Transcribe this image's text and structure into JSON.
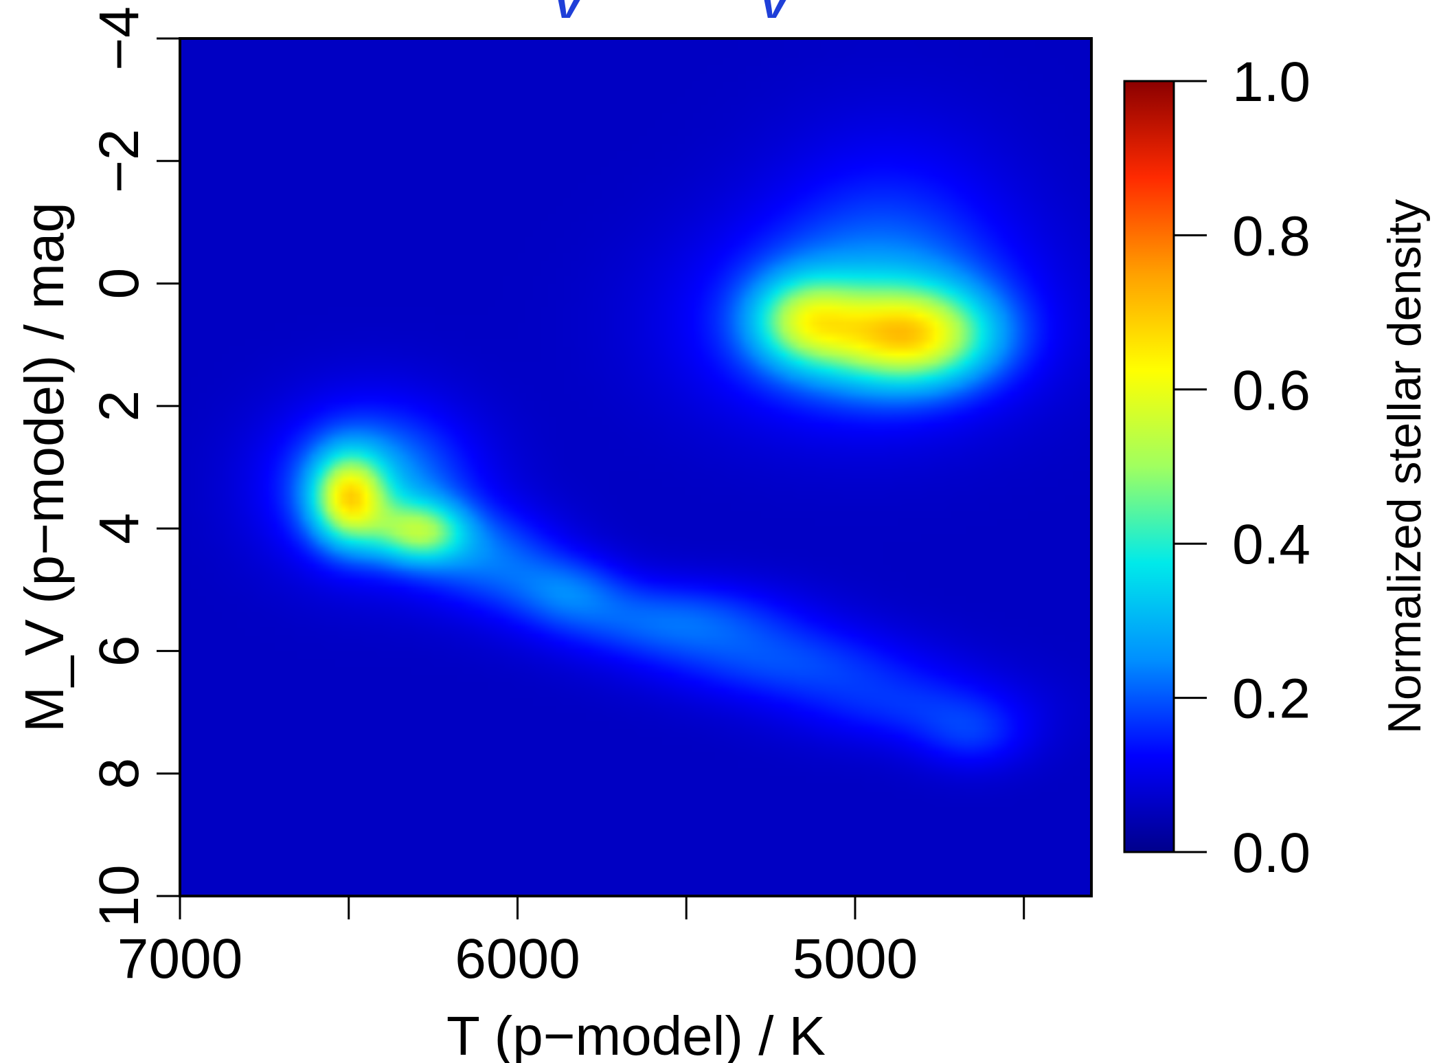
{
  "chart_data": {
    "type": "heatmap",
    "title": "",
    "xlabel": "T (p−model) / K",
    "ylabel": "M_V (p−model) / mag",
    "xlim": [
      7000,
      4300
    ],
    "ylim": [
      10,
      -4
    ],
    "x_ticks": [
      7000,
      6500,
      6000,
      5500,
      5000,
      4500
    ],
    "x_tick_labels": [
      "7000",
      "",
      "6000",
      "",
      "5000",
      ""
    ],
    "y_ticks": [
      -4,
      -2,
      0,
      2,
      4,
      6,
      8,
      10
    ],
    "y_tick_labels": [
      "−4",
      "−2",
      "0",
      "2",
      "4",
      "6",
      "8",
      "10"
    ],
    "colorbar": {
      "label": "Normalized stellar density",
      "range": [
        0.0,
        1.0
      ],
      "ticks": [
        0.0,
        0.2,
        0.4,
        0.6,
        0.8,
        1.0
      ],
      "tick_labels": [
        "0.0",
        "0.2",
        "0.4",
        "0.6",
        "0.8",
        "1.0"
      ],
      "colormap": [
        "#00008b",
        "#0000ff",
        "#0090ff",
        "#00eaea",
        "#a0ff60",
        "#ffff00",
        "#ffa000",
        "#ff2a00",
        "#8b0000"
      ]
    },
    "background_value": 0.06,
    "density_components": [
      {
        "name": "",
        "t": 6500,
        "mv": 3.5,
        "peak": 0.42,
        "sigma_t": 75,
        "sigma_mv": 0.5
      },
      {
        "name": "",
        "t": 6290,
        "mv": 4.05,
        "peak": 0.32,
        "sigma_t": 95,
        "sigma_mv": 0.35
      },
      {
        "name": "",
        "t": 6430,
        "mv": 3.3,
        "peak": 0.22,
        "sigma_t": 200,
        "sigma_mv": 0.9
      },
      {
        "name": "",
        "t": 6080,
        "mv": 4.5,
        "peak": 0.14,
        "sigma_t": 150,
        "sigma_mv": 0.55
      },
      {
        "name": "",
        "t": 5850,
        "mv": 5.0,
        "peak": 0.12,
        "sigma_t": 120,
        "sigma_mv": 0.4
      },
      {
        "name": "",
        "t": 5550,
        "mv": 5.5,
        "peak": 0.15,
        "sigma_t": 250,
        "sigma_mv": 0.45
      },
      {
        "name": "",
        "t": 5200,
        "mv": 6.2,
        "peak": 0.11,
        "sigma_t": 260,
        "sigma_mv": 0.45
      },
      {
        "name": "",
        "t": 4850,
        "mv": 6.9,
        "peak": 0.09,
        "sigma_t": 240,
        "sigma_mv": 0.45
      },
      {
        "name": "",
        "t": 4650,
        "mv": 7.4,
        "peak": 0.08,
        "sigma_t": 120,
        "sigma_mv": 0.4
      },
      {
        "name": "",
        "t": 4840,
        "mv": 0.85,
        "peak": 0.45,
        "sigma_t": 170,
        "sigma_mv": 0.55
      },
      {
        "name": "",
        "t": 5150,
        "mv": 0.6,
        "peak": 0.3,
        "sigma_t": 110,
        "sigma_mv": 0.5
      },
      {
        "name": "",
        "t": 4990,
        "mv": 0.65,
        "peak": 0.18,
        "sigma_t": 330,
        "sigma_mv": 1.1
      },
      {
        "name": "",
        "t": 4900,
        "mv": -0.8,
        "peak": 0.08,
        "sigma_t": 250,
        "sigma_mv": 1.3
      }
    ]
  }
}
